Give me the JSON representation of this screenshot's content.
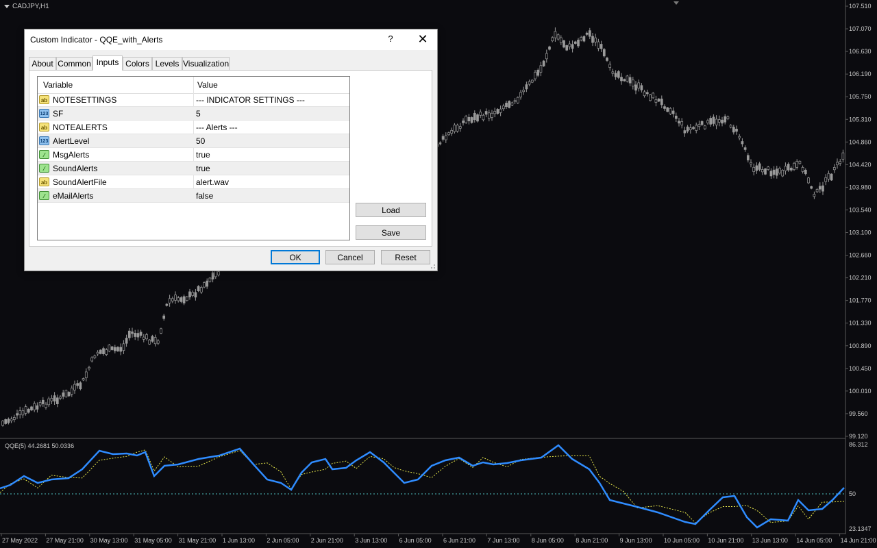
{
  "chart": {
    "symbol_label": "CADJPY,H1",
    "indicator_label": "QQE(5) 44.2681 50.0336",
    "price_axis": [
      "107.510",
      "107.070",
      "106.630",
      "106.190",
      "105.750",
      "105.310",
      "104.860",
      "104.420",
      "103.980",
      "103.540",
      "103.100",
      "102.660",
      "102.210",
      "101.770",
      "101.330",
      "100.890",
      "100.450",
      "100.010",
      "99.560",
      "99.120"
    ],
    "indicator_axis": [
      "86.312",
      "50",
      "23.1347"
    ],
    "time_axis": [
      "27 May 2022",
      "27 May 21:00",
      "30 May 13:00",
      "31 May 05:00",
      "31 May 21:00",
      "1 Jun 13:00",
      "2 Jun 05:00",
      "2 Jun 21:00",
      "3 Jun 13:00",
      "6 Jun 05:00",
      "6 Jun 21:00",
      "7 Jun 13:00",
      "8 Jun 05:00",
      "8 Jun 21:00",
      "9 Jun 13:00",
      "10 Jun 05:00",
      "10 Jun 21:00",
      "13 Jun 13:00",
      "14 Jun 05:00",
      "14 Jun 21:00"
    ],
    "colors": {
      "background": "#0b0b0f",
      "candles": "#9a9a9a",
      "qqe_line": "#2f8cff",
      "signal_line": "#e8e84a",
      "level_line": "#4fc3c3",
      "axis_text": "#c8c8c8"
    }
  },
  "dialog": {
    "title": "Custom Indicator - QQE_with_Alerts",
    "help_label": "?",
    "close_label": "✕",
    "tabs": [
      {
        "label": "About"
      },
      {
        "label": "Common"
      },
      {
        "label": "Inputs",
        "active": true
      },
      {
        "label": "Colors"
      },
      {
        "label": "Levels"
      },
      {
        "label": "Visualization"
      }
    ],
    "columns": {
      "variable": "Variable",
      "value": "Value"
    },
    "rows": [
      {
        "icon": "ab",
        "name": "NOTESETTINGS",
        "value": "--- INDICATOR SETTINGS ---"
      },
      {
        "icon": "123",
        "name": "SF",
        "value": "5"
      },
      {
        "icon": "ab",
        "name": "NOTEALERTS",
        "value": "--- Alerts ---"
      },
      {
        "icon": "123",
        "name": "AlertLevel",
        "value": "50"
      },
      {
        "icon": "bool",
        "name": "MsgAlerts",
        "value": "true"
      },
      {
        "icon": "bool",
        "name": "SoundAlerts",
        "value": "true"
      },
      {
        "icon": "ab",
        "name": "SoundAlertFile",
        "value": "alert.wav"
      },
      {
        "icon": "bool",
        "name": "eMailAlerts",
        "value": "false"
      }
    ],
    "buttons": {
      "load": "Load",
      "save": "Save",
      "ok": "OK",
      "cancel": "Cancel",
      "reset": "Reset"
    }
  }
}
